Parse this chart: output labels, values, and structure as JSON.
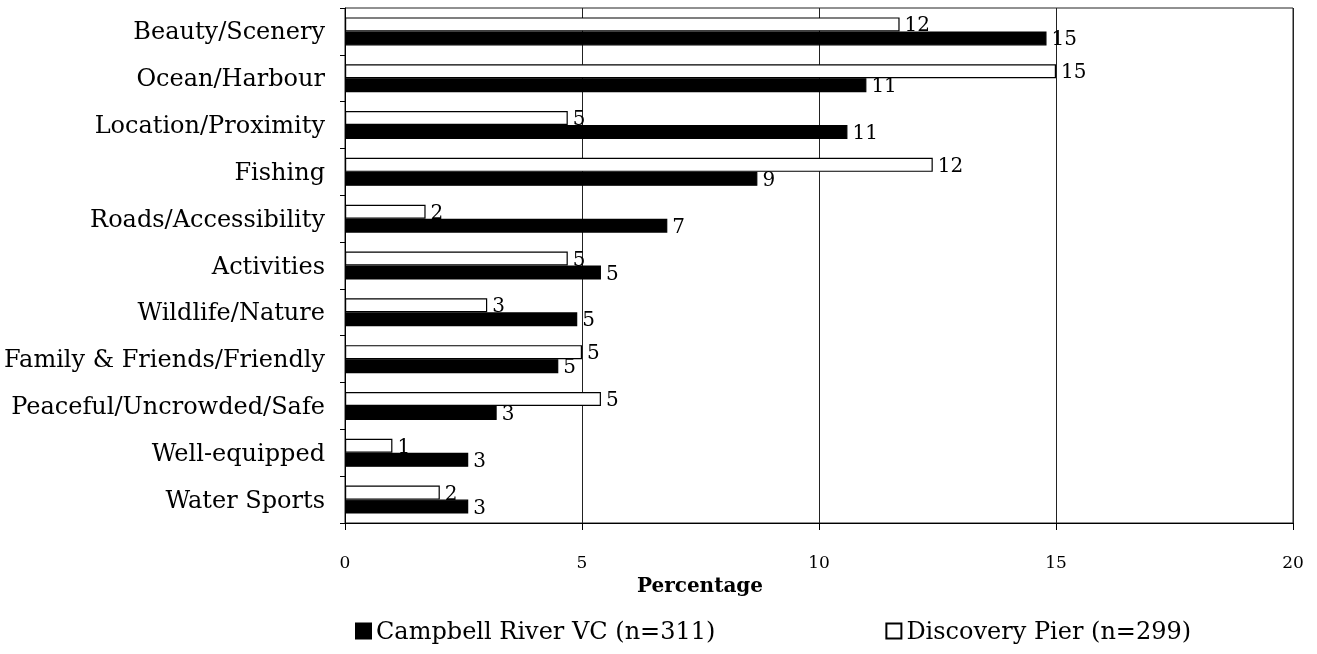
{
  "chart_data": {
    "type": "bar",
    "orientation": "horizontal",
    "xlabel": "Percentage",
    "categories": [
      "Beauty/Scenery",
      "Ocean/Harbour",
      "Location/Proximity",
      "Fishing",
      "Roads/Accessibility",
      "Activities",
      "Wildlife/Nature",
      "Family & Friends/Friendly",
      "Peaceful/Uncrowded/Safe",
      "Well-equipped",
      "Water Sports"
    ],
    "series": [
      {
        "name": "Campbell River VC (n=311)",
        "color": "#000000",
        "values": [
          14.8,
          11.0,
          10.6,
          8.7,
          6.8,
          5.4,
          4.9,
          4.5,
          3.2,
          2.6,
          2.6
        ],
        "value_labels": [
          "15",
          "11",
          "11",
          "9",
          "7",
          "5",
          "5",
          "5",
          "3",
          "3",
          "3"
        ]
      },
      {
        "name": "Discovery Pier (n=299)",
        "color": "#ffffff",
        "values": [
          11.7,
          15.0,
          4.7,
          12.4,
          1.7,
          4.7,
          3.0,
          5.0,
          5.4,
          1.0,
          2.0
        ],
        "value_labels": [
          "12",
          "15",
          "5",
          "12",
          "2",
          "5",
          "3",
          "5",
          "5",
          "1",
          "2"
        ]
      }
    ],
    "xlim": [
      0,
      20
    ],
    "xticks": [
      0,
      5,
      10,
      15,
      20
    ],
    "grid": "x",
    "legend": "bottom"
  }
}
